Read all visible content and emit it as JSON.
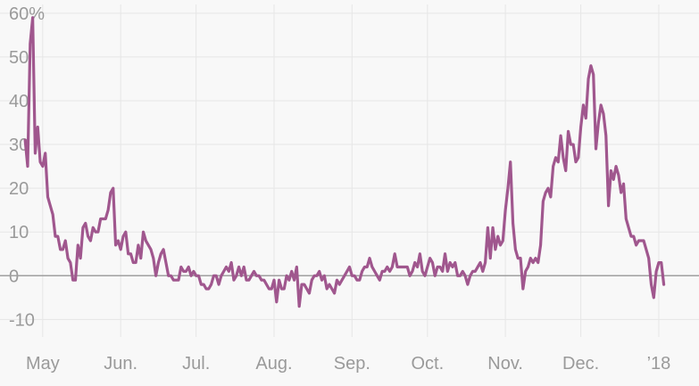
{
  "chart_data": {
    "type": "line",
    "title": "",
    "xlabel": "",
    "ylabel": "",
    "y_unit_suffix": "%",
    "ylim": [
      -14,
      62
    ],
    "y_ticks": [
      60,
      50,
      40,
      30,
      20,
      10,
      0,
      -10
    ],
    "y_tick_labels": [
      "60%",
      "50",
      "40",
      "30",
      "20",
      "10",
      "0",
      "-10"
    ],
    "x_ticks": [
      {
        "label": "May",
        "date": "2017-05-01"
      },
      {
        "label": "Jun.",
        "date": "2017-06-01"
      },
      {
        "label": "Jul.",
        "date": "2017-07-01"
      },
      {
        "label": "Aug.",
        "date": "2017-08-01"
      },
      {
        "label": "Sep.",
        "date": "2017-09-01"
      },
      {
        "label": "Oct.",
        "date": "2017-10-01"
      },
      {
        "label": "Nov.",
        "date": "2017-11-01"
      },
      {
        "label": "Dec.",
        "date": "2017-12-01"
      },
      {
        "label": "’18",
        "date": "2018-01-01"
      }
    ],
    "xlim": [
      "2017-04-14",
      "2018-01-17"
    ],
    "grid": true,
    "legend": "none",
    "series": [
      {
        "color": "#a0578e",
        "points": [
          [
            "2017-04-24",
            31
          ],
          [
            "2017-04-25",
            25
          ],
          [
            "2017-04-26",
            53
          ],
          [
            "2017-04-27",
            59
          ],
          [
            "2017-04-28",
            28
          ],
          [
            "2017-04-29",
            34
          ],
          [
            "2017-04-30",
            26
          ],
          [
            "2017-05-01",
            25
          ],
          [
            "2017-05-02",
            28
          ],
          [
            "2017-05-03",
            18
          ],
          [
            "2017-05-04",
            16
          ],
          [
            "2017-05-05",
            14
          ],
          [
            "2017-05-06",
            9
          ],
          [
            "2017-05-07",
            9
          ],
          [
            "2017-05-08",
            6
          ],
          [
            "2017-05-09",
            6
          ],
          [
            "2017-05-10",
            8
          ],
          [
            "2017-05-11",
            4
          ],
          [
            "2017-05-12",
            3
          ],
          [
            "2017-05-13",
            -1
          ],
          [
            "2017-05-14",
            -1
          ],
          [
            "2017-05-15",
            7
          ],
          [
            "2017-05-16",
            4
          ],
          [
            "2017-05-17",
            11
          ],
          [
            "2017-05-18",
            12
          ],
          [
            "2017-05-19",
            9
          ],
          [
            "2017-05-20",
            8
          ],
          [
            "2017-05-21",
            11
          ],
          [
            "2017-05-22",
            10
          ],
          [
            "2017-05-23",
            10
          ],
          [
            "2017-05-24",
            13
          ],
          [
            "2017-05-25",
            13
          ],
          [
            "2017-05-26",
            13
          ],
          [
            "2017-05-27",
            15
          ],
          [
            "2017-05-28",
            19
          ],
          [
            "2017-05-29",
            20
          ],
          [
            "2017-05-30",
            7
          ],
          [
            "2017-05-31",
            8
          ],
          [
            "2017-06-01",
            6
          ],
          [
            "2017-06-02",
            9
          ],
          [
            "2017-06-03",
            10
          ],
          [
            "2017-06-04",
            5
          ],
          [
            "2017-06-05",
            5
          ],
          [
            "2017-06-06",
            3
          ],
          [
            "2017-06-07",
            3
          ],
          [
            "2017-06-08",
            7
          ],
          [
            "2017-06-09",
            4
          ],
          [
            "2017-06-10",
            10
          ],
          [
            "2017-06-11",
            8
          ],
          [
            "2017-06-12",
            7
          ],
          [
            "2017-06-13",
            6
          ],
          [
            "2017-06-14",
            4
          ],
          [
            "2017-06-15",
            0
          ],
          [
            "2017-06-16",
            3
          ],
          [
            "2017-06-17",
            5
          ],
          [
            "2017-06-18",
            6
          ],
          [
            "2017-06-19",
            3
          ],
          [
            "2017-06-20",
            0
          ],
          [
            "2017-06-21",
            0
          ],
          [
            "2017-06-22",
            -1
          ],
          [
            "2017-06-23",
            -1
          ],
          [
            "2017-06-24",
            -1
          ],
          [
            "2017-06-25",
            2
          ],
          [
            "2017-06-26",
            1
          ],
          [
            "2017-06-27",
            1
          ],
          [
            "2017-06-28",
            2
          ],
          [
            "2017-06-29",
            0
          ],
          [
            "2017-06-30",
            1
          ],
          [
            "2017-07-01",
            0
          ],
          [
            "2017-07-02",
            0
          ],
          [
            "2017-07-03",
            -2
          ],
          [
            "2017-07-04",
            -2
          ],
          [
            "2017-07-05",
            -3
          ],
          [
            "2017-07-06",
            -3
          ],
          [
            "2017-07-07",
            -2
          ],
          [
            "2017-07-08",
            0
          ],
          [
            "2017-07-09",
            0
          ],
          [
            "2017-07-10",
            -2
          ],
          [
            "2017-07-11",
            0
          ],
          [
            "2017-07-12",
            1
          ],
          [
            "2017-07-13",
            2
          ],
          [
            "2017-07-14",
            1
          ],
          [
            "2017-07-15",
            3
          ],
          [
            "2017-07-16",
            -1
          ],
          [
            "2017-07-17",
            0
          ],
          [
            "2017-07-18",
            2
          ],
          [
            "2017-07-19",
            0
          ],
          [
            "2017-07-20",
            2
          ],
          [
            "2017-07-21",
            -1
          ],
          [
            "2017-07-22",
            -1
          ],
          [
            "2017-07-23",
            0
          ],
          [
            "2017-07-24",
            1
          ],
          [
            "2017-07-25",
            0
          ],
          [
            "2017-07-26",
            0
          ],
          [
            "2017-07-27",
            -1
          ],
          [
            "2017-07-28",
            -1
          ],
          [
            "2017-07-29",
            -2
          ],
          [
            "2017-07-30",
            -3
          ],
          [
            "2017-07-31",
            -3
          ],
          [
            "2017-08-01",
            -1
          ],
          [
            "2017-08-02",
            -6
          ],
          [
            "2017-08-03",
            -1
          ],
          [
            "2017-08-04",
            -3
          ],
          [
            "2017-08-05",
            -3
          ],
          [
            "2017-08-06",
            0
          ],
          [
            "2017-08-07",
            -1
          ],
          [
            "2017-08-08",
            1
          ],
          [
            "2017-08-09",
            -1
          ],
          [
            "2017-08-10",
            2
          ],
          [
            "2017-08-11",
            -7
          ],
          [
            "2017-08-12",
            -2
          ],
          [
            "2017-08-13",
            -2
          ],
          [
            "2017-08-14",
            -3
          ],
          [
            "2017-08-15",
            -4
          ],
          [
            "2017-08-16",
            -1
          ],
          [
            "2017-08-17",
            0
          ],
          [
            "2017-08-18",
            0
          ],
          [
            "2017-08-19",
            1
          ],
          [
            "2017-08-20",
            -1
          ],
          [
            "2017-08-21",
            0
          ],
          [
            "2017-08-22",
            -3
          ],
          [
            "2017-08-23",
            -2
          ],
          [
            "2017-08-24",
            -3
          ],
          [
            "2017-08-25",
            -4
          ],
          [
            "2017-08-26",
            -1
          ],
          [
            "2017-08-27",
            -2
          ],
          [
            "2017-08-28",
            -1
          ],
          [
            "2017-08-29",
            0
          ],
          [
            "2017-08-30",
            1
          ],
          [
            "2017-08-31",
            2
          ],
          [
            "2017-09-01",
            0
          ],
          [
            "2017-09-02",
            0
          ],
          [
            "2017-09-03",
            -1
          ],
          [
            "2017-09-04",
            -1
          ],
          [
            "2017-09-05",
            1
          ],
          [
            "2017-09-06",
            2
          ],
          [
            "2017-09-07",
            2
          ],
          [
            "2017-09-08",
            4
          ],
          [
            "2017-09-09",
            2
          ],
          [
            "2017-09-10",
            1
          ],
          [
            "2017-09-11",
            0
          ],
          [
            "2017-09-12",
            -1
          ],
          [
            "2017-09-13",
            1
          ],
          [
            "2017-09-14",
            1
          ],
          [
            "2017-09-15",
            2
          ],
          [
            "2017-09-16",
            1
          ],
          [
            "2017-09-17",
            2
          ],
          [
            "2017-09-18",
            5
          ],
          [
            "2017-09-19",
            2
          ],
          [
            "2017-09-20",
            2
          ],
          [
            "2017-09-21",
            2
          ],
          [
            "2017-09-22",
            2
          ],
          [
            "2017-09-23",
            2
          ],
          [
            "2017-09-24",
            0
          ],
          [
            "2017-09-25",
            1
          ],
          [
            "2017-09-26",
            3
          ],
          [
            "2017-09-27",
            2
          ],
          [
            "2017-09-28",
            5
          ],
          [
            "2017-09-29",
            1
          ],
          [
            "2017-09-30",
            0
          ],
          [
            "2017-10-01",
            2
          ],
          [
            "2017-10-02",
            4
          ],
          [
            "2017-10-03",
            3
          ],
          [
            "2017-10-04",
            0
          ],
          [
            "2017-10-05",
            2
          ],
          [
            "2017-10-06",
            2
          ],
          [
            "2017-10-07",
            1
          ],
          [
            "2017-10-08",
            5
          ],
          [
            "2017-10-09",
            1
          ],
          [
            "2017-10-10",
            3
          ],
          [
            "2017-10-11",
            2
          ],
          [
            "2017-10-12",
            3
          ],
          [
            "2017-10-13",
            0
          ],
          [
            "2017-10-14",
            0
          ],
          [
            "2017-10-15",
            1
          ],
          [
            "2017-10-16",
            0
          ],
          [
            "2017-10-17",
            -2
          ],
          [
            "2017-10-18",
            0
          ],
          [
            "2017-10-19",
            1
          ],
          [
            "2017-10-20",
            1
          ],
          [
            "2017-10-21",
            2
          ],
          [
            "2017-10-22",
            3
          ],
          [
            "2017-10-23",
            1
          ],
          [
            "2017-10-24",
            3
          ],
          [
            "2017-10-25",
            11
          ],
          [
            "2017-10-26",
            4
          ],
          [
            "2017-10-27",
            11
          ],
          [
            "2017-10-28",
            6
          ],
          [
            "2017-10-29",
            9
          ],
          [
            "2017-10-30",
            7
          ],
          [
            "2017-10-31",
            8
          ],
          [
            "2017-11-01",
            15
          ],
          [
            "2017-11-02",
            20
          ],
          [
            "2017-11-03",
            26
          ],
          [
            "2017-11-04",
            12
          ],
          [
            "2017-11-05",
            6
          ],
          [
            "2017-11-06",
            4
          ],
          [
            "2017-11-07",
            4
          ],
          [
            "2017-11-08",
            -3
          ],
          [
            "2017-11-09",
            1
          ],
          [
            "2017-11-10",
            2
          ],
          [
            "2017-11-11",
            4
          ],
          [
            "2017-11-12",
            3
          ],
          [
            "2017-11-13",
            4
          ],
          [
            "2017-11-14",
            3
          ],
          [
            "2017-11-15",
            7
          ],
          [
            "2017-11-16",
            17
          ],
          [
            "2017-11-17",
            19
          ],
          [
            "2017-11-18",
            20
          ],
          [
            "2017-11-19",
            18
          ],
          [
            "2017-11-20",
            25
          ],
          [
            "2017-11-21",
            27
          ],
          [
            "2017-11-22",
            26
          ],
          [
            "2017-11-23",
            32
          ],
          [
            "2017-11-24",
            27
          ],
          [
            "2017-11-25",
            24
          ],
          [
            "2017-11-26",
            33
          ],
          [
            "2017-11-27",
            30
          ],
          [
            "2017-11-28",
            30
          ],
          [
            "2017-11-29",
            26
          ],
          [
            "2017-11-30",
            27
          ],
          [
            "2017-12-01",
            34
          ],
          [
            "2017-12-02",
            39
          ],
          [
            "2017-12-03",
            36
          ],
          [
            "2017-12-04",
            45
          ],
          [
            "2017-12-05",
            48
          ],
          [
            "2017-12-06",
            46
          ],
          [
            "2017-12-07",
            29
          ],
          [
            "2017-12-08",
            35
          ],
          [
            "2017-12-09",
            39
          ],
          [
            "2017-12-10",
            37
          ],
          [
            "2017-12-11",
            32
          ],
          [
            "2017-12-12",
            16
          ],
          [
            "2017-12-13",
            24
          ],
          [
            "2017-12-14",
            22
          ],
          [
            "2017-12-15",
            25
          ],
          [
            "2017-12-16",
            23
          ],
          [
            "2017-12-17",
            19
          ],
          [
            "2017-12-18",
            21
          ],
          [
            "2017-12-19",
            13
          ],
          [
            "2017-12-20",
            11
          ],
          [
            "2017-12-21",
            9
          ],
          [
            "2017-12-22",
            9
          ],
          [
            "2017-12-23",
            7
          ],
          [
            "2017-12-24",
            8
          ],
          [
            "2017-12-25",
            8
          ],
          [
            "2017-12-26",
            8
          ],
          [
            "2017-12-27",
            6
          ],
          [
            "2017-12-28",
            4
          ],
          [
            "2017-12-29",
            -2
          ],
          [
            "2017-12-30",
            -5
          ],
          [
            "2017-12-31",
            1
          ],
          [
            "2018-01-01",
            3
          ],
          [
            "2018-01-02",
            3
          ],
          [
            "2018-01-03",
            -2
          ]
        ]
      }
    ]
  }
}
